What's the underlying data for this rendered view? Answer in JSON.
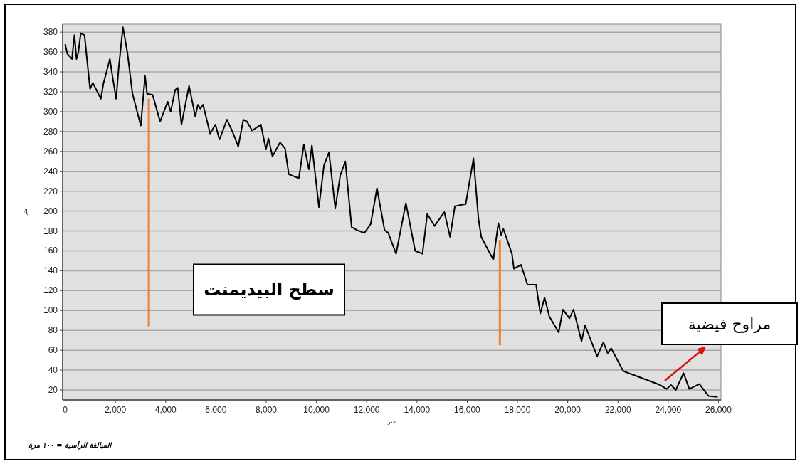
{
  "chart_data": {
    "type": "line",
    "xlabel": "متر",
    "ylabel": "متر",
    "xlim": [
      -100,
      26100
    ],
    "ylim": [
      10,
      388
    ],
    "xticks": [
      {
        "value": 0,
        "label": "0"
      },
      {
        "value": 2000,
        "label": "2,000"
      },
      {
        "value": 4000,
        "label": "4,000"
      },
      {
        "value": 6000,
        "label": "6,000"
      },
      {
        "value": 8000,
        "label": "8,000"
      },
      {
        "value": 10000,
        "label": "10,000"
      },
      {
        "value": 12000,
        "label": "12,000"
      },
      {
        "value": 14000,
        "label": "14,000"
      },
      {
        "value": 16000,
        "label": "16,000"
      },
      {
        "value": 18000,
        "label": "18,000"
      },
      {
        "value": 20000,
        "label": "20,000"
      },
      {
        "value": 22000,
        "label": "22,000"
      },
      {
        "value": 24000,
        "label": "24,000"
      },
      {
        "value": 26000,
        "label": "26,000"
      }
    ],
    "yticks": [
      20,
      40,
      60,
      80,
      100,
      120,
      140,
      160,
      180,
      200,
      220,
      240,
      260,
      280,
      300,
      320,
      340,
      360,
      380
    ],
    "grid": "y",
    "series": [
      {
        "color": "#000000",
        "x": [
          0,
          90,
          270,
          370,
          450,
          520,
          620,
          770,
          990,
          1100,
          1420,
          1520,
          1780,
          1880,
          2030,
          2130,
          2300,
          2480,
          2680,
          3010,
          3180,
          3260,
          3480,
          3780,
          4080,
          4200,
          4380,
          4480,
          4630,
          4930,
          5180,
          5280,
          5380,
          5490,
          5770,
          5980,
          6140,
          6440,
          6640,
          6890,
          7090,
          7240,
          7440,
          7790,
          7990,
          8090,
          8250,
          8550,
          8750,
          8900,
          9300,
          9500,
          9700,
          9820,
          10100,
          10300,
          10500,
          10750,
          10950,
          11150,
          11400,
          11600,
          11910,
          12160,
          12410,
          12710,
          12860,
          13170,
          13560,
          13930,
          14220,
          14410,
          14700,
          15090,
          15320,
          15510,
          15940,
          16250,
          16450,
          16560,
          17040,
          17240,
          17350,
          17440,
          17780,
          17860,
          18140,
          18400,
          18740,
          18910,
          19080,
          19270,
          19640,
          19810,
          20070,
          20230,
          20550,
          20690,
          21170,
          21420,
          21590,
          21730,
          22210,
          22950,
          23680,
          23940,
          24110,
          24300,
          24610,
          24840,
          25240,
          25600,
          25970
        ],
        "values": [
          368,
          358,
          353,
          377,
          353,
          359,
          379,
          377,
          323,
          329,
          313,
          328,
          353,
          336,
          313,
          344,
          385,
          359,
          318,
          286,
          336,
          318,
          317,
          290,
          310,
          300,
          322,
          324,
          287,
          326,
          295,
          307,
          303,
          307,
          278,
          287,
          272,
          292,
          281,
          265,
          292,
          290,
          281,
          287,
          262,
          273,
          255,
          269,
          263,
          237,
          233,
          267,
          242,
          266,
          204,
          246,
          259,
          203,
          236,
          250,
          184,
          181,
          178,
          187,
          223,
          181,
          178,
          157,
          208,
          160,
          157,
          197,
          185,
          199,
          174,
          205,
          207,
          253,
          192,
          174,
          151,
          188,
          176,
          182,
          157,
          142,
          146,
          126,
          126,
          97,
          113,
          94,
          78,
          101,
          92,
          101,
          69,
          85,
          54,
          68,
          57,
          62,
          39,
          32,
          25,
          21,
          25,
          20,
          37,
          21,
          26,
          14,
          13
        ]
      },
      {
        "color": "#ef7d31",
        "x": [
          3330,
          3330
        ],
        "values": [
          313,
          84
        ]
      },
      {
        "color": "#ef7d31",
        "x": [
          17300,
          17300
        ],
        "values": [
          171,
          65
        ]
      }
    ],
    "annotations": [
      "سطح البيديمنت",
      "مراوح فيضية",
      "المبالغة الرأسية = ١٠٠ مرة"
    ]
  }
}
